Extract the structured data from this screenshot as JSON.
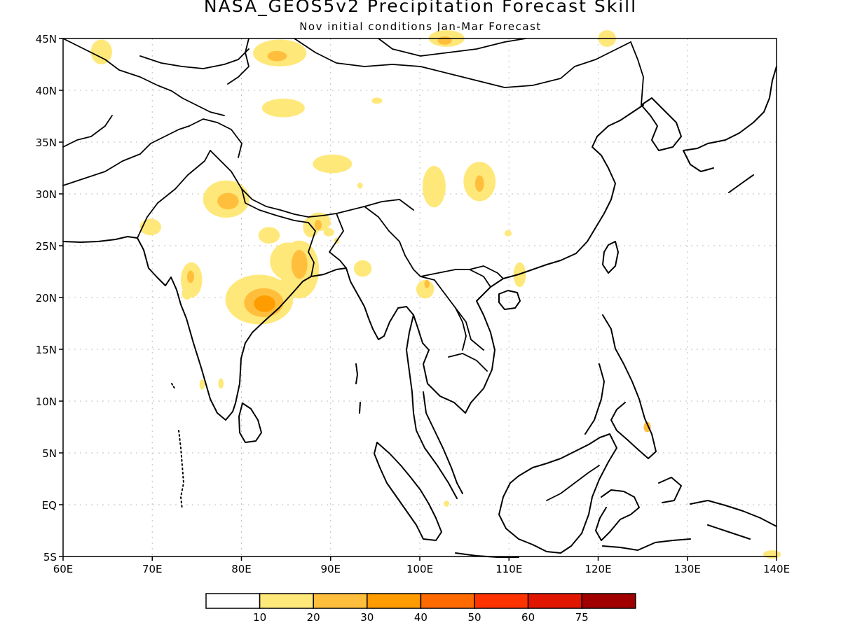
{
  "title": "NASA_GEOS5v2 Precipitation Forecast Skill",
  "subtitle": "Nov initial conditions  Jan-Mar Forecast",
  "map": {
    "lon_range": [
      60,
      140
    ],
    "lat_range": [
      -5,
      45
    ],
    "x_ticks": [
      {
        "value": 60,
        "label": "60E"
      },
      {
        "value": 70,
        "label": "70E"
      },
      {
        "value": 80,
        "label": "80E"
      },
      {
        "value": 90,
        "label": "90E"
      },
      {
        "value": 100,
        "label": "100E"
      },
      {
        "value": 110,
        "label": "110E"
      },
      {
        "value": 120,
        "label": "120E"
      },
      {
        "value": 130,
        "label": "130E"
      },
      {
        "value": 140,
        "label": "140E"
      }
    ],
    "y_ticks": [
      {
        "value": 45,
        "label": "45N"
      },
      {
        "value": 40,
        "label": "40N"
      },
      {
        "value": 35,
        "label": "35N"
      },
      {
        "value": 30,
        "label": "30N"
      },
      {
        "value": 25,
        "label": "25N"
      },
      {
        "value": 20,
        "label": "20N"
      },
      {
        "value": 15,
        "label": "15N"
      },
      {
        "value": 10,
        "label": "10N"
      },
      {
        "value": 5,
        "label": "5N"
      },
      {
        "value": 0,
        "label": "EQ"
      },
      {
        "value": -5,
        "label": "5S"
      }
    ],
    "grid": true
  },
  "skill_regions": [
    {
      "lon": 82,
      "lat": 19.8,
      "rx": 3.8,
      "ry": 2.4,
      "level": 1
    },
    {
      "lon": 82.5,
      "lat": 19.5,
      "rx": 2.2,
      "ry": 1.4,
      "level": 2
    },
    {
      "lon": 82.6,
      "lat": 19.4,
      "rx": 1.2,
      "ry": 0.8,
      "level": 3
    },
    {
      "lon": 86.5,
      "lat": 22.7,
      "rx": 2.2,
      "ry": 2.8,
      "level": 1
    },
    {
      "lon": 85.2,
      "lat": 23.5,
      "rx": 2.0,
      "ry": 1.8,
      "level": 1
    },
    {
      "lon": 86.5,
      "lat": 23.2,
      "rx": 0.9,
      "ry": 1.4,
      "level": 2
    },
    {
      "lon": 78.3,
      "lat": 29.5,
      "rx": 2.6,
      "ry": 1.8,
      "level": 1
    },
    {
      "lon": 78.5,
      "lat": 29.3,
      "rx": 1.2,
      "ry": 0.8,
      "level": 2
    },
    {
      "lon": 74.4,
      "lat": 21.7,
      "rx": 1.2,
      "ry": 1.7,
      "level": 1
    },
    {
      "lon": 74.3,
      "lat": 22.0,
      "rx": 0.4,
      "ry": 0.6,
      "level": 2
    },
    {
      "lon": 73.9,
      "lat": 20.4,
      "rx": 0.6,
      "ry": 0.6,
      "level": 1
    },
    {
      "lon": 87.8,
      "lat": 26.8,
      "rx": 0.9,
      "ry": 1.0,
      "level": 1
    },
    {
      "lon": 88.7,
      "lat": 27.3,
      "rx": 1.3,
      "ry": 0.9,
      "level": 1
    },
    {
      "lon": 88.6,
      "lat": 27.0,
      "rx": 0.4,
      "ry": 0.5,
      "level": 2
    },
    {
      "lon": 89.8,
      "lat": 26.3,
      "rx": 0.6,
      "ry": 0.4,
      "level": 1
    },
    {
      "lon": 69.8,
      "lat": 26.8,
      "rx": 1.2,
      "ry": 0.8,
      "level": 1
    },
    {
      "lon": 83.1,
      "lat": 26.0,
      "rx": 1.2,
      "ry": 0.8,
      "level": 1
    },
    {
      "lon": 84.7,
      "lat": 38.3,
      "rx": 2.4,
      "ry": 0.9,
      "level": 1
    },
    {
      "lon": 84.3,
      "lat": 43.6,
      "rx": 3.0,
      "ry": 1.3,
      "level": 1
    },
    {
      "lon": 84.0,
      "lat": 43.3,
      "rx": 1.1,
      "ry": 0.5,
      "level": 2
    },
    {
      "lon": 64.3,
      "lat": 43.7,
      "rx": 1.2,
      "ry": 1.2,
      "level": 1
    },
    {
      "lon": 90.2,
      "lat": 32.9,
      "rx": 2.2,
      "ry": 0.9,
      "level": 1
    },
    {
      "lon": 101.6,
      "lat": 30.7,
      "rx": 1.3,
      "ry": 2.0,
      "level": 1
    },
    {
      "lon": 106.7,
      "lat": 31.2,
      "rx": 1.8,
      "ry": 1.9,
      "level": 1
    },
    {
      "lon": 106.7,
      "lat": 31.0,
      "rx": 0.5,
      "ry": 0.8,
      "level": 2
    },
    {
      "lon": 103.0,
      "lat": 45.0,
      "rx": 2.0,
      "ry": 0.8,
      "level": 1
    },
    {
      "lon": 102.8,
      "lat": 44.8,
      "rx": 0.8,
      "ry": 0.4,
      "level": 2
    },
    {
      "lon": 121.0,
      "lat": 45.0,
      "rx": 1.0,
      "ry": 0.8,
      "level": 1
    },
    {
      "lon": 93.6,
      "lat": 22.8,
      "rx": 1.0,
      "ry": 0.8,
      "level": 1
    },
    {
      "lon": 100.6,
      "lat": 20.8,
      "rx": 1.0,
      "ry": 0.9,
      "level": 1
    },
    {
      "lon": 100.8,
      "lat": 21.3,
      "rx": 0.3,
      "ry": 0.4,
      "level": 2
    },
    {
      "lon": 111.2,
      "lat": 22.2,
      "rx": 0.7,
      "ry": 1.2,
      "level": 1
    },
    {
      "lon": 109.9,
      "lat": 26.2,
      "rx": 0.4,
      "ry": 0.3,
      "level": 1
    },
    {
      "lon": 77.7,
      "lat": 11.7,
      "rx": 0.3,
      "ry": 0.5,
      "level": 1
    },
    {
      "lon": 75.6,
      "lat": 11.6,
      "rx": 0.3,
      "ry": 0.5,
      "level": 1
    },
    {
      "lon": 93.3,
      "lat": 30.8,
      "rx": 0.3,
      "ry": 0.3,
      "level": 1
    },
    {
      "lon": 90.7,
      "lat": 25.5,
      "rx": 0.3,
      "ry": 0.3,
      "level": 1
    },
    {
      "lon": 95.2,
      "lat": 39.0,
      "rx": 0.6,
      "ry": 0.3,
      "level": 1
    },
    {
      "lon": 139.5,
      "lat": -4.8,
      "rx": 1.0,
      "ry": 0.4,
      "level": 1
    },
    {
      "lon": 103.0,
      "lat": 0.1,
      "rx": 0.3,
      "ry": 0.3,
      "level": 1
    },
    {
      "lon": 125.5,
      "lat": 7.5,
      "rx": 0.4,
      "ry": 0.5,
      "level": 2
    }
  ],
  "colorbar": {
    "colors": [
      "#ffffff",
      "#ffe87a",
      "#ffbf3d",
      "#ff9c00",
      "#ff6a00",
      "#ff3300",
      "#e11600",
      "#a10000"
    ],
    "labels": [
      "10",
      "20",
      "30",
      "40",
      "50",
      "60",
      "75"
    ]
  }
}
